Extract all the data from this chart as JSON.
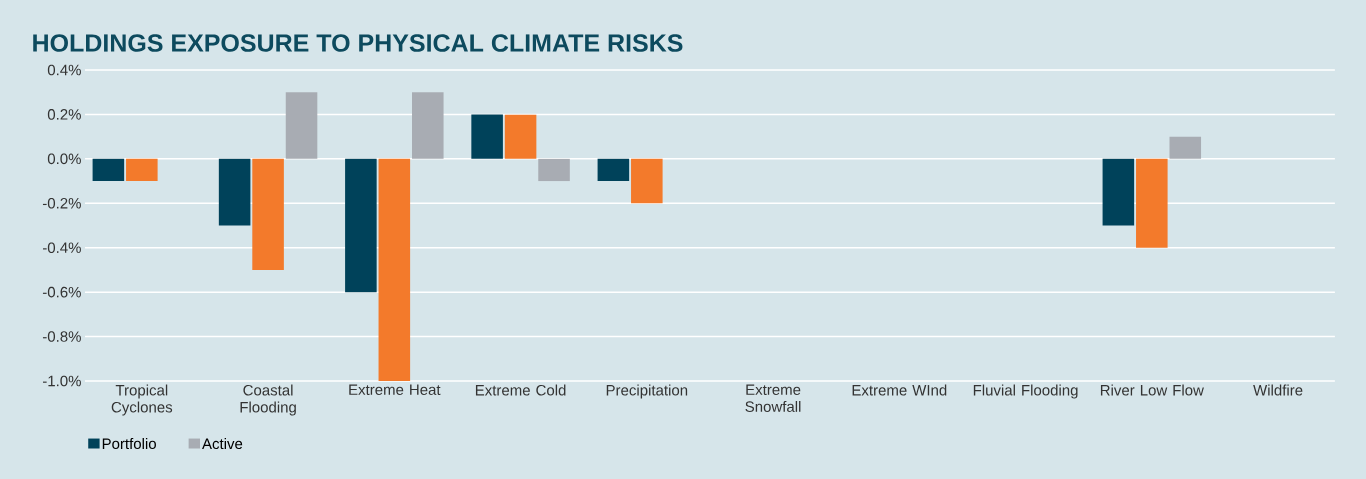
{
  "chart_data": {
    "type": "bar",
    "title": "HOLDINGS EXPOSURE TO PHYSICAL CLIMATE RISKS",
    "categories": [
      "Tropical Cyclones",
      "Coastal Flooding",
      "Extreme Heat",
      "Extreme Cold",
      "Precipitation",
      "Extreme Snowfall",
      "Extreme WInd",
      "Fluvial Flooding",
      "River Low Flow",
      "Wildfire"
    ],
    "series": [
      {
        "name": "Portfolio",
        "color": "#00425a",
        "values": [
          -0.1,
          -0.3,
          -0.6,
          0.2,
          -0.1,
          0,
          0,
          0,
          -0.3,
          0
        ]
      },
      {
        "color": "#f37a2b",
        "values": [
          -0.1,
          -0.5,
          -1.0,
          0.2,
          -0.2,
          0,
          0,
          0,
          -0.4,
          0
        ]
      },
      {
        "name": "Active",
        "color": "#a8acb3",
        "values": [
          0,
          0.3,
          0.3,
          -0.1,
          0,
          0,
          0,
          0,
          0.1,
          0
        ]
      }
    ],
    "ylim": [
      -1.0,
      0.4
    ],
    "yticks": [
      {
        "value": -1.0,
        "label": "-1.0%"
      },
      {
        "value": -0.8,
        "label": "-0.8%"
      },
      {
        "value": -0.6,
        "label": "-0.6%"
      },
      {
        "value": -0.4,
        "label": "-0.4%"
      },
      {
        "value": -0.2,
        "label": "-0.2%"
      },
      {
        "value": 0.0,
        "label": "0.0%"
      },
      {
        "value": 0.2,
        "label": "0.2%"
      },
      {
        "value": 0.4,
        "label": "0.4%"
      }
    ],
    "grid": "y",
    "legend": "bottom left"
  }
}
